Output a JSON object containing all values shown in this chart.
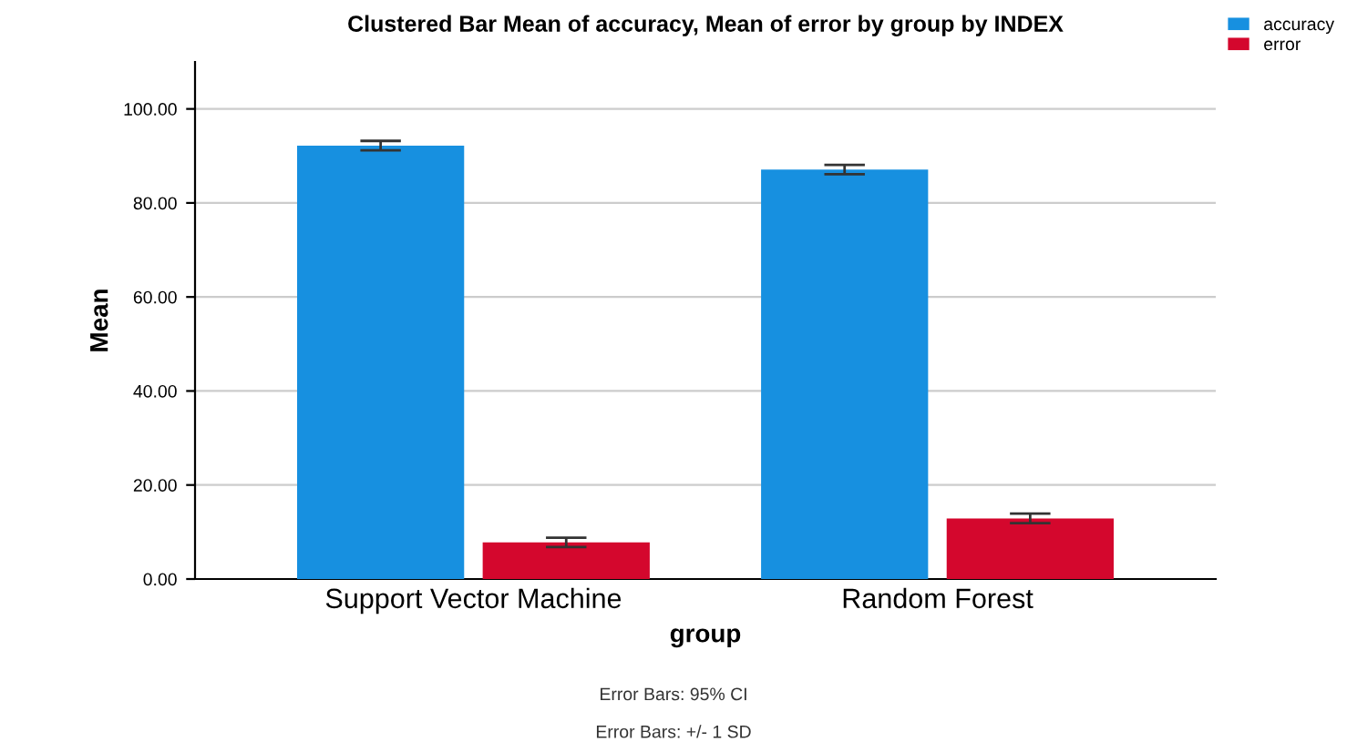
{
  "chart_data": {
    "type": "bar",
    "title": "Clustered Bar Mean of accuracy, Mean of error by group by INDEX",
    "xlabel": "group",
    "ylabel": "Mean",
    "categories": [
      "Support Vector Machine",
      "Random Forest"
    ],
    "series": [
      {
        "name": "accuracy",
        "color": "#1790e0",
        "values": [
          92.2,
          87.1
        ],
        "errors": [
          1.0,
          1.0
        ]
      },
      {
        "name": "error",
        "color": "#d4072d",
        "values": [
          7.8,
          12.9
        ],
        "errors": [
          1.0,
          1.0
        ]
      }
    ],
    "ylim": [
      0,
      110
    ],
    "yticks": [
      {
        "value": 0,
        "label": "0.00"
      },
      {
        "value": 20,
        "label": "20.00"
      },
      {
        "value": 40,
        "label": "40.00"
      },
      {
        "value": 60,
        "label": "60.00"
      },
      {
        "value": 80,
        "label": "80.00"
      },
      {
        "value": 100,
        "label": "100.00"
      }
    ],
    "grid": "y",
    "legend": "top right",
    "annotations": [
      "Error Bars: 95% CI",
      "Error Bars: +/- 1 SD"
    ]
  }
}
